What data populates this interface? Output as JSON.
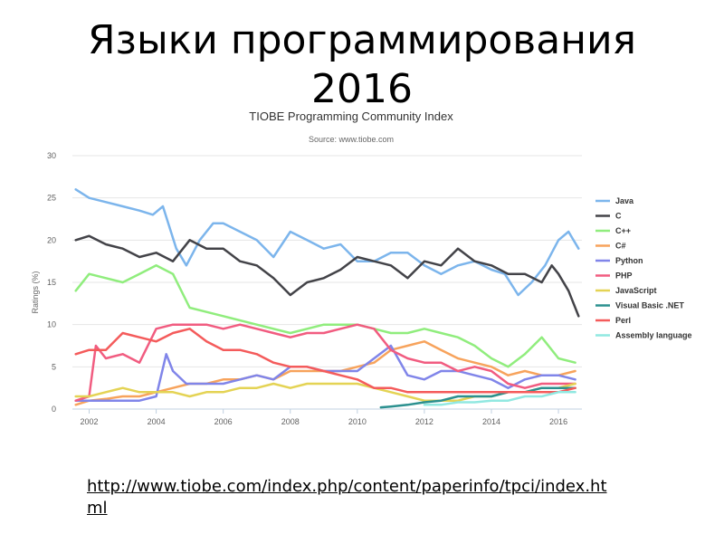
{
  "slide": {
    "title_line1": "Языки программирования",
    "title_line2": "2016",
    "link": "http://www.tiobe.com/index.php/content/paperinfo/tpci/index.html"
  },
  "chart_data": {
    "type": "line",
    "title": "TIOBE Programming Community Index",
    "subtitle": "Source: www.tiobe.com",
    "xlabel": "",
    "ylabel": "Ratings (%)",
    "xlim": [
      2001.5,
      2016.7
    ],
    "ylim": [
      0,
      30
    ],
    "xticks": [
      2002,
      2004,
      2006,
      2008,
      2010,
      2012,
      2014,
      2016
    ],
    "yticks": [
      0,
      5,
      10,
      15,
      20,
      25,
      30
    ],
    "grid": "horizontal",
    "legend": "right",
    "series": [
      {
        "name": "Java",
        "color": "#7cb5ec",
        "x": [
          2001.6,
          2002.0,
          2002.5,
          2003.0,
          2003.5,
          2003.9,
          2004.2,
          2004.6,
          2004.9,
          2005.3,
          2005.7,
          2006.0,
          2006.5,
          2007.0,
          2007.5,
          2008.0,
          2008.5,
          2009.0,
          2009.5,
          2010.0,
          2010.5,
          2011.0,
          2011.5,
          2012.0,
          2012.5,
          2013.0,
          2013.5,
          2014.0,
          2014.4,
          2014.8,
          2015.2,
          2015.6,
          2016.0,
          2016.3,
          2016.6
        ],
        "values": [
          26,
          25,
          24.5,
          24,
          23.5,
          23,
          24,
          19,
          17,
          20,
          22,
          22,
          21,
          20,
          18,
          21,
          20,
          19,
          19.5,
          17.5,
          17.5,
          18.5,
          18.5,
          17,
          16,
          17,
          17.5,
          16.5,
          16,
          13.5,
          15,
          17,
          20,
          21,
          19
        ]
      },
      {
        "name": "C",
        "color": "#434348",
        "x": [
          2001.6,
          2002.0,
          2002.5,
          2003.0,
          2003.5,
          2004.0,
          2004.5,
          2005.0,
          2005.5,
          2006.0,
          2006.5,
          2007.0,
          2007.5,
          2008.0,
          2008.5,
          2009.0,
          2009.5,
          2010.0,
          2010.5,
          2011.0,
          2011.5,
          2012.0,
          2012.5,
          2013.0,
          2013.5,
          2014.0,
          2014.5,
          2015.0,
          2015.5,
          2015.8,
          2016.0,
          2016.3,
          2016.6
        ],
        "values": [
          20,
          20.5,
          19.5,
          19,
          18,
          18.5,
          17.5,
          20,
          19,
          19,
          17.5,
          17,
          15.5,
          13.5,
          15,
          15.5,
          16.5,
          18,
          17.5,
          17,
          15.5,
          17.5,
          17,
          19,
          17.5,
          17,
          16,
          16,
          15,
          17,
          16,
          14,
          11
        ]
      },
      {
        "name": "C++",
        "color": "#90ed7d",
        "x": [
          2001.6,
          2002.0,
          2002.5,
          2003.0,
          2003.5,
          2004.0,
          2004.5,
          2005.0,
          2005.5,
          2006.0,
          2007.0,
          2008.0,
          2009.0,
          2010.0,
          2010.5,
          2011.0,
          2011.5,
          2012.0,
          2012.5,
          2013.0,
          2013.5,
          2014.0,
          2014.5,
          2015.0,
          2015.5,
          2016.0,
          2016.5
        ],
        "values": [
          14,
          16,
          15.5,
          15,
          16,
          17,
          16,
          12,
          11.5,
          11,
          10,
          9,
          10,
          10,
          9.5,
          9,
          9,
          9.5,
          9,
          8.5,
          7.5,
          6,
          5,
          6.5,
          8.5,
          6,
          5.5
        ]
      },
      {
        "name": "C#",
        "color": "#f7a35c",
        "x": [
          2001.6,
          2002.0,
          2002.5,
          2003.0,
          2003.5,
          2004.0,
          2004.5,
          2005.0,
          2005.5,
          2006.0,
          2006.5,
          2007.0,
          2007.5,
          2008.0,
          2008.5,
          2009.0,
          2009.5,
          2010.0,
          2010.5,
          2011.0,
          2011.5,
          2012.0,
          2012.5,
          2013.0,
          2013.5,
          2014.0,
          2014.5,
          2015.0,
          2015.5,
          2016.0,
          2016.5
        ],
        "values": [
          0.5,
          1,
          1.2,
          1.5,
          1.5,
          2,
          2.5,
          3,
          3,
          3.5,
          3.5,
          4,
          3.5,
          4.5,
          4.5,
          4.5,
          4.5,
          5,
          5.5,
          7,
          7.5,
          8,
          7,
          6,
          5.5,
          5,
          4,
          4.5,
          4,
          4,
          4.5
        ]
      },
      {
        "name": "Python",
        "color": "#8085e9",
        "x": [
          2001.6,
          2002.0,
          2002.5,
          2003.0,
          2003.5,
          2004.0,
          2004.3,
          2004.5,
          2004.9,
          2005.5,
          2006.0,
          2006.5,
          2007.0,
          2007.5,
          2008.0,
          2008.5,
          2009.0,
          2009.5,
          2010.0,
          2010.5,
          2011.0,
          2011.5,
          2012.0,
          2012.5,
          2013.0,
          2013.5,
          2014.0,
          2014.5,
          2015.0,
          2015.5,
          2016.0,
          2016.5
        ],
        "values": [
          1,
          1,
          1,
          1,
          1,
          1.5,
          6.5,
          4.5,
          3,
          3,
          3,
          3.5,
          4,
          3.5,
          5,
          5,
          4.5,
          4.5,
          4.5,
          6,
          7.5,
          4,
          3.5,
          4.5,
          4.5,
          4,
          3.5,
          2.5,
          3.5,
          4,
          4,
          3.5
        ]
      },
      {
        "name": "PHP",
        "color": "#f15c80",
        "x": [
          2001.6,
          2002.0,
          2002.2,
          2002.5,
          2003.0,
          2003.5,
          2004.0,
          2004.5,
          2005.0,
          2005.5,
          2006.0,
          2006.5,
          2007.0,
          2007.5,
          2008.0,
          2008.5,
          2009.0,
          2009.5,
          2010.0,
          2010.5,
          2011.0,
          2011.5,
          2012.0,
          2012.5,
          2013.0,
          2013.5,
          2014.0,
          2014.5,
          2015.0,
          2015.5,
          2016.0,
          2016.5
        ],
        "values": [
          1,
          1.5,
          7.5,
          6,
          6.5,
          5.5,
          9.5,
          10,
          10,
          10,
          9.5,
          10,
          9.5,
          9,
          8.5,
          9,
          9,
          9.5,
          10,
          9.5,
          7,
          6,
          5.5,
          5.5,
          4.5,
          5,
          4.5,
          3,
          2.5,
          3,
          3,
          3
        ]
      },
      {
        "name": "JavaScript",
        "color": "#e4d354",
        "x": [
          2001.6,
          2002.0,
          2002.5,
          2003.0,
          2003.5,
          2004.0,
          2004.5,
          2005.0,
          2005.5,
          2006.0,
          2006.5,
          2007.0,
          2007.5,
          2008.0,
          2008.5,
          2009.0,
          2009.5,
          2010.0,
          2010.5,
          2011.0,
          2011.5,
          2012.0,
          2012.5,
          2013.0,
          2013.5,
          2014.0,
          2014.5,
          2015.0,
          2015.5,
          2016.0,
          2016.5
        ],
        "values": [
          1.5,
          1.5,
          2,
          2.5,
          2,
          2,
          2,
          1.5,
          2,
          2,
          2.5,
          2.5,
          3,
          2.5,
          3,
          3,
          3,
          3,
          2.5,
          2,
          1.5,
          1,
          1,
          1,
          1.5,
          1.5,
          2,
          2,
          2.5,
          2.5,
          3
        ]
      },
      {
        "name": "Visual Basic .NET",
        "color": "#2b908f",
        "x": [
          2010.7,
          2011.0,
          2011.5,
          2012.0,
          2012.5,
          2013.0,
          2013.5,
          2014.0,
          2014.5,
          2015.0,
          2015.5,
          2016.0,
          2016.5
        ],
        "values": [
          0.2,
          0.3,
          0.5,
          0.8,
          1,
          1.5,
          1.5,
          1.5,
          2,
          2,
          2.5,
          2.5,
          2.5
        ]
      },
      {
        "name": "Perl",
        "color": "#f45b5b",
        "x": [
          2001.6,
          2002.0,
          2002.5,
          2003.0,
          2003.5,
          2004.0,
          2004.5,
          2005.0,
          2005.5,
          2006.0,
          2006.5,
          2007.0,
          2007.5,
          2008.0,
          2008.5,
          2009.0,
          2009.5,
          2010.0,
          2010.5,
          2011.0,
          2011.5,
          2012.0,
          2012.5,
          2013.0,
          2013.5,
          2014.0,
          2014.5,
          2015.0,
          2015.5,
          2016.0,
          2016.5
        ],
        "values": [
          6.5,
          7,
          7,
          9,
          8.5,
          8,
          9,
          9.5,
          8,
          7,
          7,
          6.5,
          5.5,
          5,
          5,
          4.5,
          4,
          3.5,
          2.5,
          2.5,
          2,
          2,
          2,
          2,
          2,
          2,
          2,
          2,
          2,
          2,
          2.5
        ]
      },
      {
        "name": "Assembly language",
        "color": "#91e8e1",
        "x": [
          2012.0,
          2012.5,
          2013.0,
          2013.5,
          2014.0,
          2014.5,
          2015.0,
          2015.5,
          2016.0,
          2016.5
        ],
        "values": [
          0.5,
          0.5,
          0.8,
          0.8,
          1,
          1,
          1.5,
          1.5,
          2,
          2
        ]
      }
    ]
  }
}
